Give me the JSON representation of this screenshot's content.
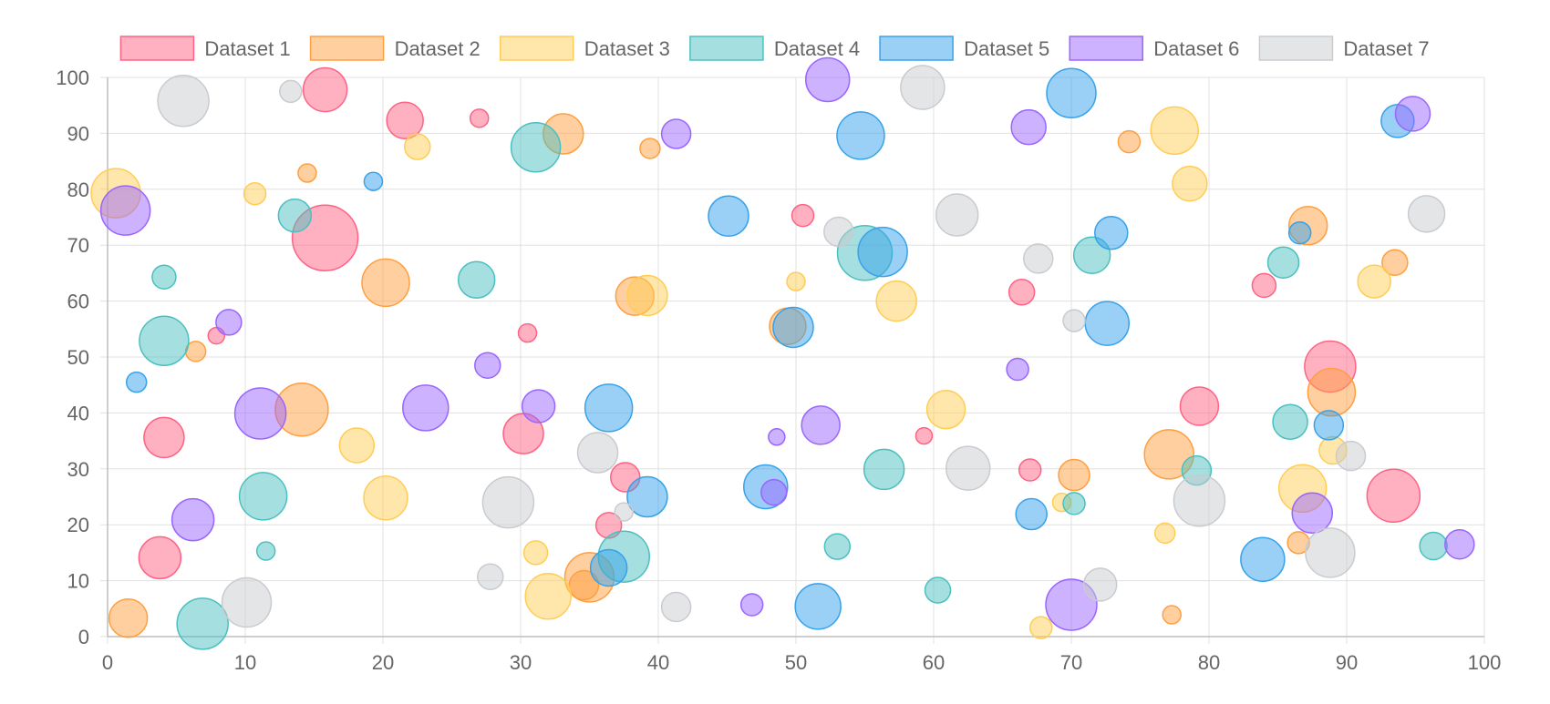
{
  "chart_data": {
    "type": "bubble",
    "title": "",
    "xlabel": "",
    "ylabel": "",
    "xlim": [
      0,
      100
    ],
    "ylim": [
      0,
      100
    ],
    "x_ticks": [
      0,
      10,
      20,
      30,
      40,
      50,
      60,
      70,
      80,
      90,
      100
    ],
    "y_ticks": [
      0,
      10,
      20,
      30,
      40,
      50,
      60,
      70,
      80,
      90,
      100
    ],
    "grid": true,
    "legend_position": "top",
    "series": [
      {
        "name": "Dataset 1",
        "border": "#ff6384",
        "fill": "rgba(255,99,132,0.5)",
        "points": [
          {
            "x": 15.8,
            "y": 97.8,
            "r": 24
          },
          {
            "x": 21.6,
            "y": 92.3,
            "r": 20
          },
          {
            "x": 27.0,
            "y": 92.7,
            "r": 10
          },
          {
            "x": 15.8,
            "y": 71.3,
            "r": 36
          },
          {
            "x": 50.5,
            "y": 75.3,
            "r": 12
          },
          {
            "x": 7.9,
            "y": 53.8,
            "r": 9
          },
          {
            "x": 30.5,
            "y": 54.3,
            "r": 10
          },
          {
            "x": 66.4,
            "y": 61.6,
            "r": 14
          },
          {
            "x": 84.0,
            "y": 62.8,
            "r": 13
          },
          {
            "x": 88.8,
            "y": 48.3,
            "r": 28
          },
          {
            "x": 4.1,
            "y": 35.6,
            "r": 22
          },
          {
            "x": 30.2,
            "y": 36.3,
            "r": 22
          },
          {
            "x": 59.3,
            "y": 35.9,
            "r": 9
          },
          {
            "x": 79.3,
            "y": 41.2,
            "r": 21
          },
          {
            "x": 37.6,
            "y": 28.5,
            "r": 16
          },
          {
            "x": 67.0,
            "y": 29.8,
            "r": 12
          },
          {
            "x": 36.4,
            "y": 19.9,
            "r": 14
          },
          {
            "x": 3.8,
            "y": 14.1,
            "r": 23
          },
          {
            "x": 93.4,
            "y": 25.2,
            "r": 29
          }
        ]
      },
      {
        "name": "Dataset 2",
        "border": "#ff9f40",
        "fill": "rgba(255,159,64,0.5)",
        "points": [
          {
            "x": 33.1,
            "y": 89.9,
            "r": 22
          },
          {
            "x": 14.5,
            "y": 82.9,
            "r": 10
          },
          {
            "x": 39.4,
            "y": 87.3,
            "r": 11
          },
          {
            "x": 74.2,
            "y": 88.5,
            "r": 12
          },
          {
            "x": 87.2,
            "y": 73.5,
            "r": 21
          },
          {
            "x": 20.2,
            "y": 63.3,
            "r": 26
          },
          {
            "x": 38.3,
            "y": 60.9,
            "r": 21
          },
          {
            "x": 93.5,
            "y": 66.9,
            "r": 14
          },
          {
            "x": 6.4,
            "y": 51.0,
            "r": 11
          },
          {
            "x": 49.4,
            "y": 55.5,
            "r": 20
          },
          {
            "x": 14.1,
            "y": 40.6,
            "r": 29
          },
          {
            "x": 88.9,
            "y": 43.7,
            "r": 26
          },
          {
            "x": 77.1,
            "y": 32.6,
            "r": 27
          },
          {
            "x": 70.2,
            "y": 28.9,
            "r": 17
          },
          {
            "x": 86.5,
            "y": 16.8,
            "r": 12
          },
          {
            "x": 35.0,
            "y": 10.6,
            "r": 27
          },
          {
            "x": 34.6,
            "y": 9.2,
            "r": 16
          },
          {
            "x": 1.5,
            "y": 3.3,
            "r": 21
          },
          {
            "x": 77.3,
            "y": 3.9,
            "r": 10
          }
        ]
      },
      {
        "name": "Dataset 3",
        "border": "#ffcd56",
        "fill": "rgba(255,205,86,0.5)",
        "points": [
          {
            "x": 0.6,
            "y": 79.3,
            "r": 27
          },
          {
            "x": 10.7,
            "y": 79.2,
            "r": 12
          },
          {
            "x": 22.5,
            "y": 87.6,
            "r": 14
          },
          {
            "x": 77.5,
            "y": 90.5,
            "r": 26
          },
          {
            "x": 78.6,
            "y": 81.0,
            "r": 19
          },
          {
            "x": 39.2,
            "y": 61.0,
            "r": 22
          },
          {
            "x": 50.0,
            "y": 63.5,
            "r": 10
          },
          {
            "x": 57.3,
            "y": 60.0,
            "r": 22
          },
          {
            "x": 92.0,
            "y": 63.5,
            "r": 18
          },
          {
            "x": 18.1,
            "y": 34.2,
            "r": 19
          },
          {
            "x": 60.9,
            "y": 40.6,
            "r": 21
          },
          {
            "x": 89.0,
            "y": 33.3,
            "r": 15
          },
          {
            "x": 86.8,
            "y": 26.5,
            "r": 26
          },
          {
            "x": 20.2,
            "y": 24.8,
            "r": 24
          },
          {
            "x": 31.1,
            "y": 15.0,
            "r": 13
          },
          {
            "x": 32.0,
            "y": 7.2,
            "r": 25
          },
          {
            "x": 69.3,
            "y": 24.0,
            "r": 10
          },
          {
            "x": 76.8,
            "y": 18.5,
            "r": 11
          },
          {
            "x": 67.8,
            "y": 1.6,
            "r": 12
          }
        ]
      },
      {
        "name": "Dataset 4",
        "border": "#4bc0c0",
        "fill": "rgba(75,192,192,0.5)",
        "points": [
          {
            "x": 31.1,
            "y": 87.5,
            "r": 27
          },
          {
            "x": 13.6,
            "y": 75.3,
            "r": 18
          },
          {
            "x": 4.1,
            "y": 64.3,
            "r": 13
          },
          {
            "x": 26.8,
            "y": 63.8,
            "r": 20
          },
          {
            "x": 55.0,
            "y": 68.6,
            "r": 30
          },
          {
            "x": 71.5,
            "y": 68.2,
            "r": 20
          },
          {
            "x": 85.4,
            "y": 66.9,
            "r": 17
          },
          {
            "x": 4.1,
            "y": 52.9,
            "r": 27
          },
          {
            "x": 85.9,
            "y": 38.4,
            "r": 19
          },
          {
            "x": 11.3,
            "y": 25.1,
            "r": 26
          },
          {
            "x": 56.4,
            "y": 29.9,
            "r": 22
          },
          {
            "x": 79.1,
            "y": 29.7,
            "r": 16
          },
          {
            "x": 70.2,
            "y": 23.8,
            "r": 12
          },
          {
            "x": 11.5,
            "y": 15.3,
            "r": 10
          },
          {
            "x": 53.0,
            "y": 16.1,
            "r": 14
          },
          {
            "x": 37.5,
            "y": 14.3,
            "r": 28
          },
          {
            "x": 96.3,
            "y": 16.2,
            "r": 15
          },
          {
            "x": 6.9,
            "y": 2.3,
            "r": 28
          },
          {
            "x": 60.3,
            "y": 8.3,
            "r": 14
          }
        ]
      },
      {
        "name": "Dataset 5",
        "border": "#36a2eb",
        "fill": "rgba(54,162,235,0.5)",
        "points": [
          {
            "x": 19.3,
            "y": 81.4,
            "r": 10
          },
          {
            "x": 70.0,
            "y": 97.2,
            "r": 27
          },
          {
            "x": 54.7,
            "y": 89.6,
            "r": 26
          },
          {
            "x": 93.7,
            "y": 92.2,
            "r": 18
          },
          {
            "x": 45.1,
            "y": 75.2,
            "r": 22
          },
          {
            "x": 56.3,
            "y": 68.8,
            "r": 27
          },
          {
            "x": 72.9,
            "y": 72.2,
            "r": 18
          },
          {
            "x": 86.6,
            "y": 72.2,
            "r": 12
          },
          {
            "x": 72.6,
            "y": 56.0,
            "r": 24
          },
          {
            "x": 49.8,
            "y": 55.3,
            "r": 22
          },
          {
            "x": 2.1,
            "y": 45.5,
            "r": 11
          },
          {
            "x": 36.4,
            "y": 40.9,
            "r": 26
          },
          {
            "x": 88.7,
            "y": 37.8,
            "r": 16
          },
          {
            "x": 39.2,
            "y": 25.0,
            "r": 22
          },
          {
            "x": 47.8,
            "y": 26.8,
            "r": 24
          },
          {
            "x": 67.1,
            "y": 21.9,
            "r": 17
          },
          {
            "x": 36.4,
            "y": 12.3,
            "r": 20
          },
          {
            "x": 83.9,
            "y": 13.8,
            "r": 24
          },
          {
            "x": 51.6,
            "y": 5.4,
            "r": 25
          }
        ]
      },
      {
        "name": "Dataset 6",
        "border": "#9966ff",
        "fill": "rgba(153,102,255,0.5)",
        "points": [
          {
            "x": 1.3,
            "y": 76.2,
            "r": 27
          },
          {
            "x": 52.3,
            "y": 99.6,
            "r": 24
          },
          {
            "x": 41.3,
            "y": 89.9,
            "r": 16
          },
          {
            "x": 66.9,
            "y": 91.1,
            "r": 19
          },
          {
            "x": 94.8,
            "y": 93.5,
            "r": 19
          },
          {
            "x": 8.8,
            "y": 56.2,
            "r": 14
          },
          {
            "x": 27.6,
            "y": 48.5,
            "r": 14
          },
          {
            "x": 66.1,
            "y": 47.8,
            "r": 12
          },
          {
            "x": 11.1,
            "y": 39.9,
            "r": 28
          },
          {
            "x": 23.1,
            "y": 40.9,
            "r": 25
          },
          {
            "x": 31.3,
            "y": 41.2,
            "r": 18
          },
          {
            "x": 51.8,
            "y": 37.8,
            "r": 21
          },
          {
            "x": 48.6,
            "y": 35.7,
            "r": 9
          },
          {
            "x": 48.4,
            "y": 25.8,
            "r": 14
          },
          {
            "x": 6.2,
            "y": 20.9,
            "r": 23
          },
          {
            "x": 87.5,
            "y": 22.1,
            "r": 22
          },
          {
            "x": 98.2,
            "y": 16.5,
            "r": 16
          },
          {
            "x": 46.8,
            "y": 5.7,
            "r": 12
          },
          {
            "x": 70.0,
            "y": 5.7,
            "r": 28
          }
        ]
      },
      {
        "name": "Dataset 7",
        "border": "#c9cbcf",
        "fill": "rgba(201,203,207,0.5)",
        "points": [
          {
            "x": 5.5,
            "y": 95.8,
            "r": 28
          },
          {
            "x": 13.3,
            "y": 97.5,
            "r": 12
          },
          {
            "x": 59.2,
            "y": 98.2,
            "r": 24
          },
          {
            "x": 61.7,
            "y": 75.4,
            "r": 23
          },
          {
            "x": 95.8,
            "y": 75.6,
            "r": 20
          },
          {
            "x": 53.1,
            "y": 72.4,
            "r": 16
          },
          {
            "x": 67.6,
            "y": 67.6,
            "r": 16
          },
          {
            "x": 70.2,
            "y": 56.5,
            "r": 12
          },
          {
            "x": 35.6,
            "y": 32.9,
            "r": 22
          },
          {
            "x": 62.5,
            "y": 30.1,
            "r": 24
          },
          {
            "x": 90.3,
            "y": 32.3,
            "r": 16
          },
          {
            "x": 29.1,
            "y": 24.0,
            "r": 28
          },
          {
            "x": 79.3,
            "y": 24.3,
            "r": 28
          },
          {
            "x": 37.5,
            "y": 22.3,
            "r": 10
          },
          {
            "x": 88.8,
            "y": 15.0,
            "r": 27
          },
          {
            "x": 27.8,
            "y": 10.7,
            "r": 14
          },
          {
            "x": 72.1,
            "y": 9.3,
            "r": 18
          },
          {
            "x": 10.1,
            "y": 6.1,
            "r": 27
          },
          {
            "x": 41.3,
            "y": 5.3,
            "r": 16
          }
        ]
      }
    ]
  }
}
